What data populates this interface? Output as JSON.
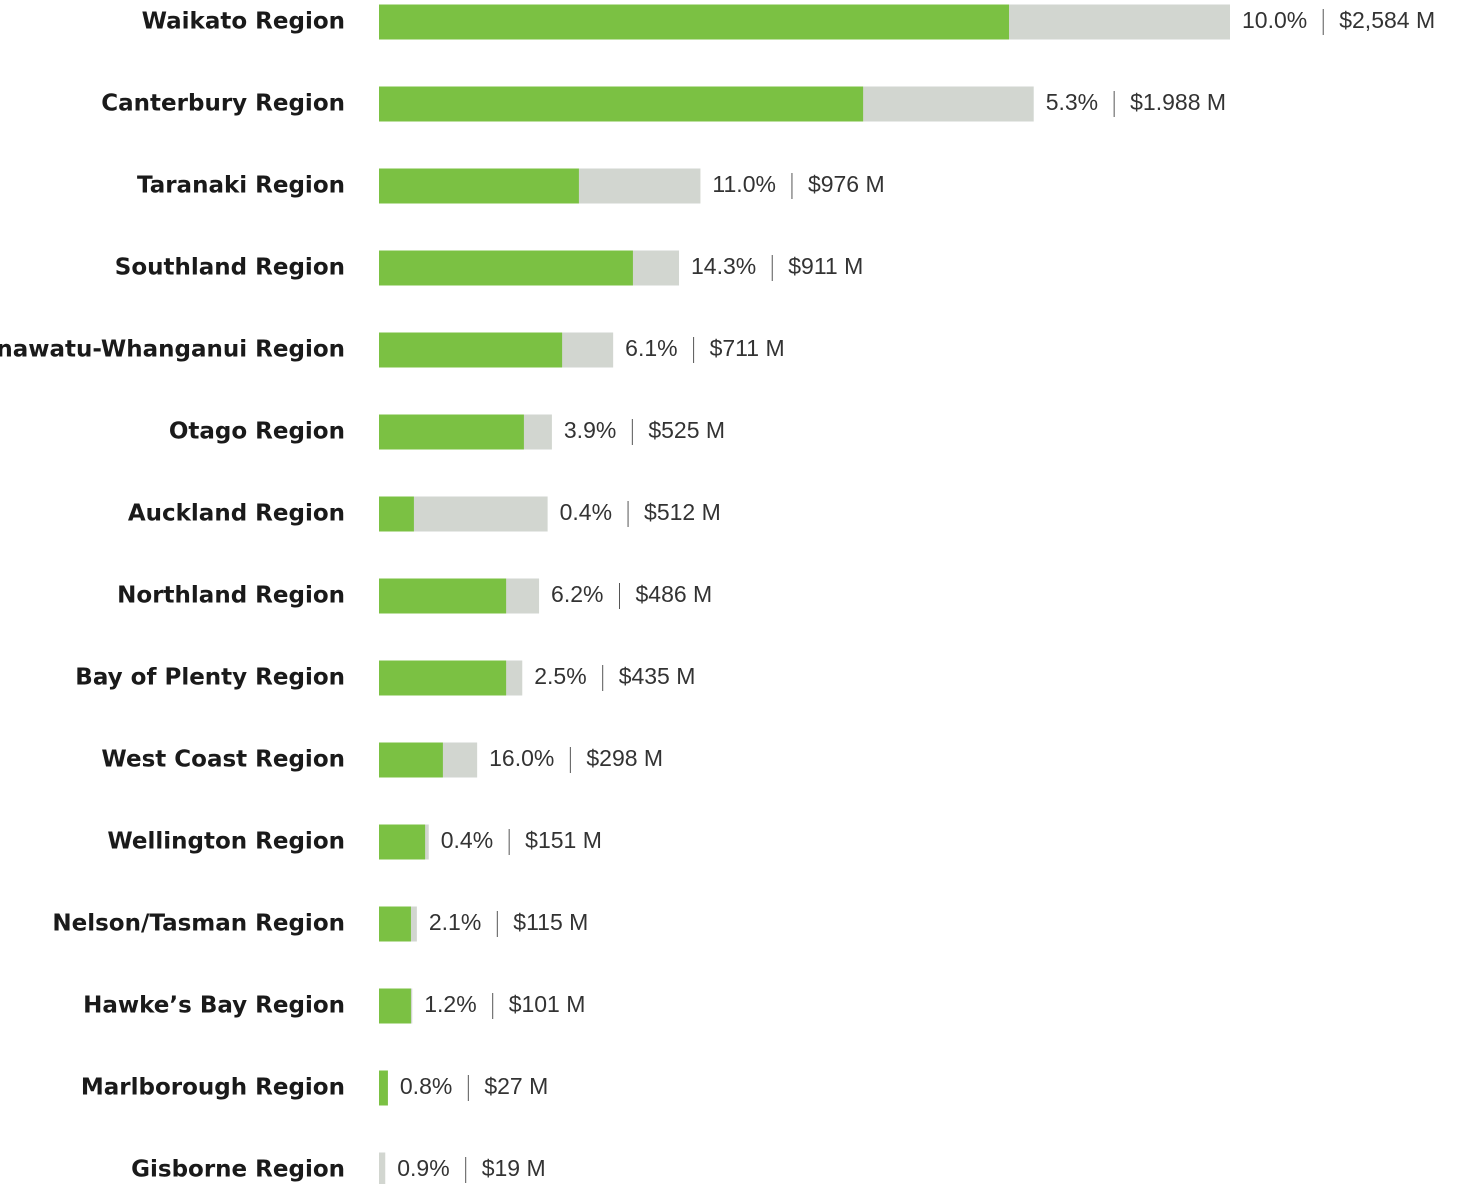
{
  "chart_data": {
    "type": "bar",
    "categories": [
      "Waikato Region",
      "Canterbury Region",
      "Taranaki Region",
      "Southland Region",
      "Manawatu-Whanganui Region",
      "Otago Region",
      "Auckland Region",
      "Northland Region",
      "Bay of Plenty Region",
      "West Coast Region",
      "Wellington Region",
      "Nelson/Tasman Region",
      "Hawke’s Bay Region",
      "Marlborough Region",
      "Gisborne Region"
    ],
    "series": [
      {
        "color": "#d2d6d0",
        "values": [
          2584,
          1988,
          976,
          911,
          711,
          525,
          512,
          486,
          435,
          298,
          151,
          115,
          101,
          27,
          19
        ],
        "value_labels": [
          "$2,584 M",
          "$1.988 M",
          "$976 M",
          "$911 M",
          "$711 M",
          "$525 M",
          "$512 M",
          "$486 M",
          "$435 M",
          "$298 M",
          "$151 M",
          "$115 M",
          "$101 M",
          "$27 M",
          "$19 M"
        ]
      },
      {
        "color": "#7bc143",
        "values": [
          1913,
          1470,
          607,
          771,
          556,
          440,
          106,
          386,
          386,
          194,
          140,
          97,
          97,
          27,
          0
        ]
      }
    ],
    "rates": [
      10,
      5.3,
      11,
      14.3,
      6.1,
      3.9,
      0.4,
      6.2,
      2.5,
      16,
      0.4,
      2.1,
      1.2,
      0.8,
      0.9
    ],
    "rate_labels": [
      "10.0%",
      "5.3%",
      "11.0%",
      "14.3%",
      "6.1%",
      "3.9%",
      "0.4%",
      "6.2%",
      "2.5%",
      "16.0%",
      "0.4%",
      "2.1%",
      "1.2%",
      "0.8%",
      "0.9%"
    ]
  }
}
